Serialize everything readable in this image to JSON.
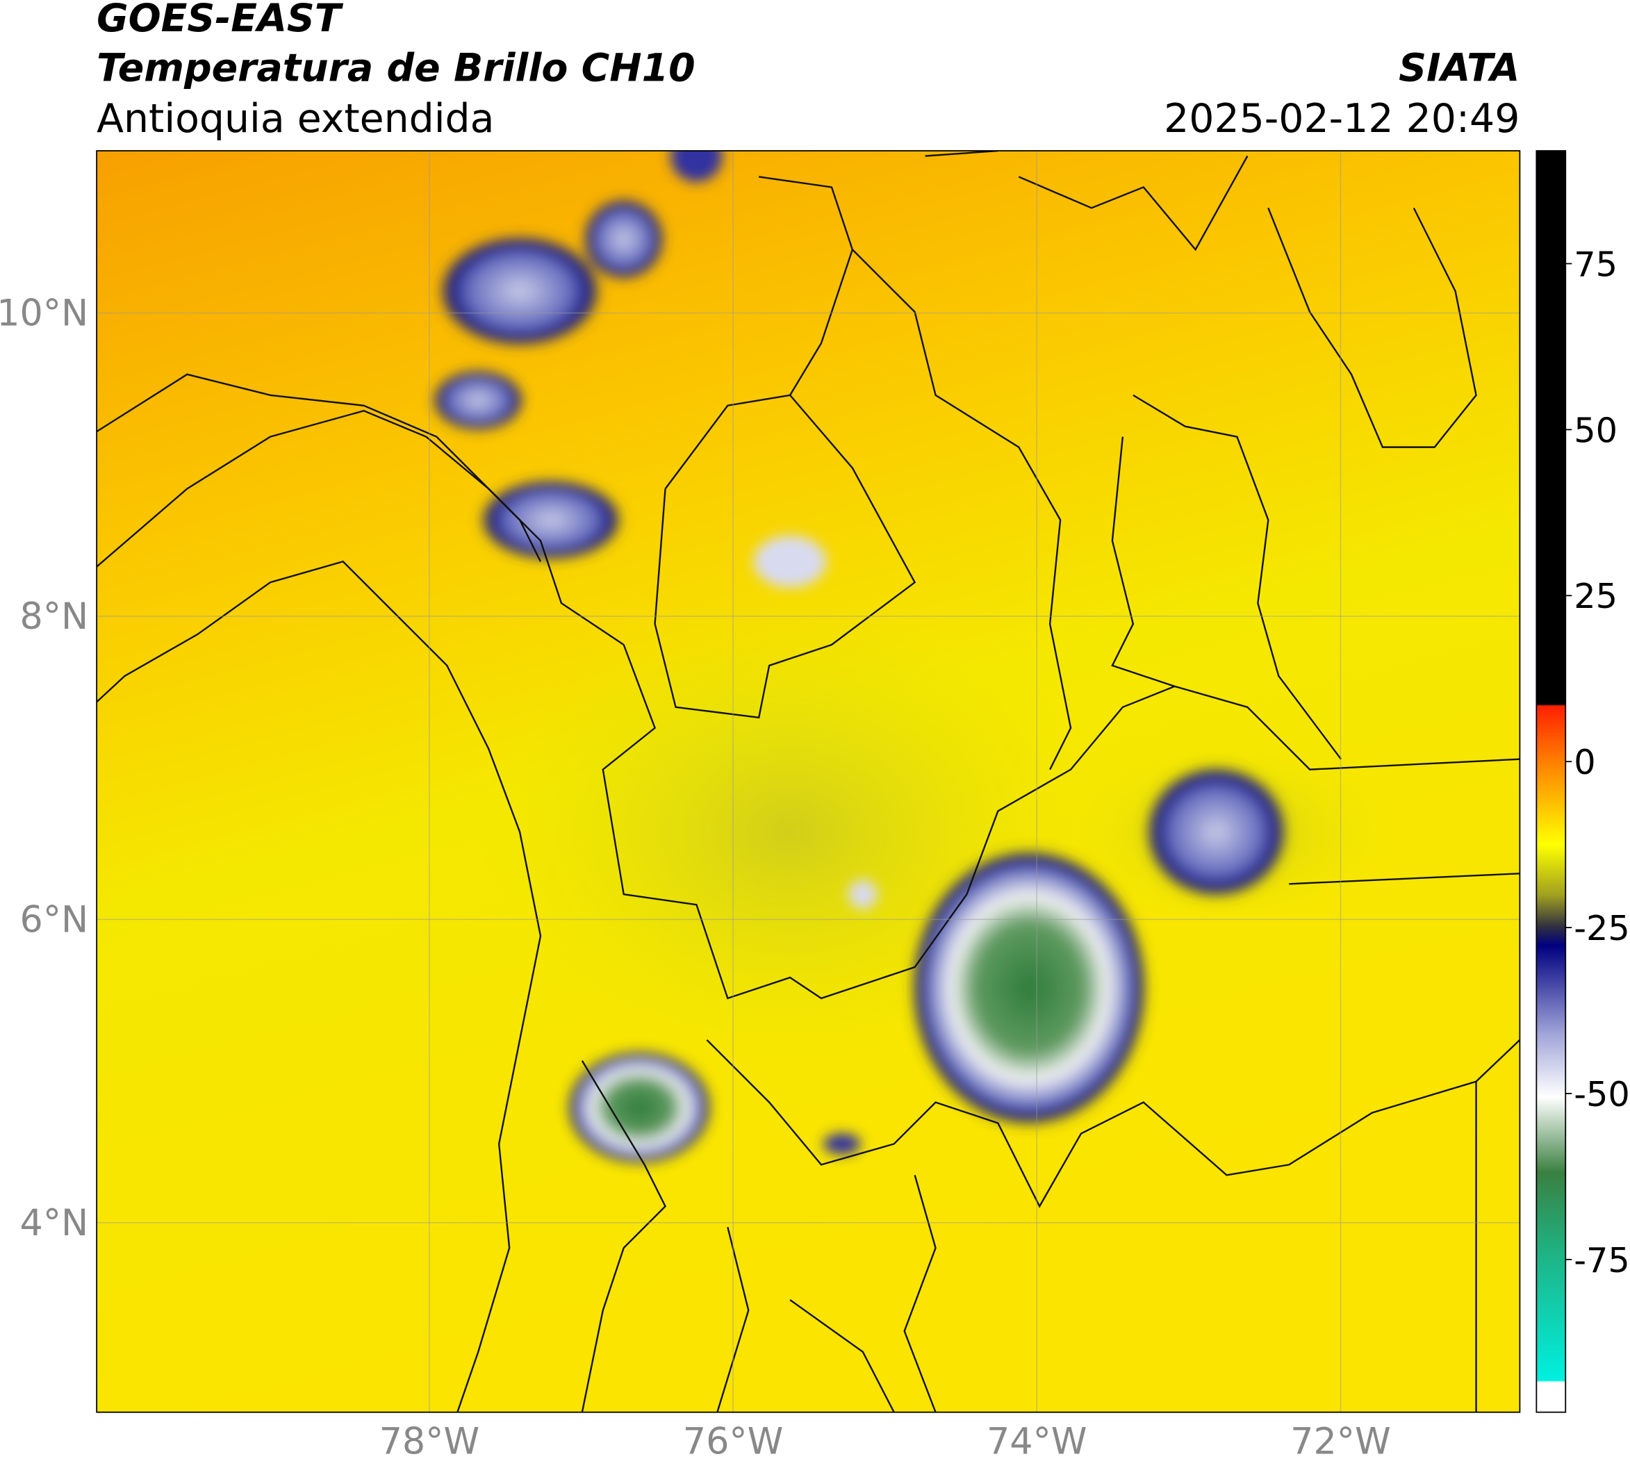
{
  "header": {
    "title": "GOES-EAST",
    "subtitle": "Temperatura de Brillo CH10",
    "region": "Antioquia extendida",
    "source": "SIATA",
    "datetime": "2025-02-12 20:49"
  },
  "map": {
    "lonlim": [
      -80.19,
      -70.82
    ],
    "latlim": [
      2.75,
      11.07
    ],
    "lonticks": [
      {
        "value": -78,
        "label": "78°W"
      },
      {
        "value": -76,
        "label": "76°W"
      },
      {
        "value": -74,
        "label": "74°W"
      },
      {
        "value": -72,
        "label": "72°W"
      }
    ],
    "latticks": [
      {
        "value": 4,
        "label": "4°N"
      },
      {
        "value": 6,
        "label": "6°N"
      },
      {
        "value": 8,
        "label": "8°N"
      },
      {
        "value": 10,
        "label": "10°N"
      }
    ]
  },
  "colorbar": {
    "lim": [
      -98,
      92
    ],
    "ticks": [
      75,
      50,
      25,
      0,
      -25,
      -50,
      -75
    ]
  }
}
